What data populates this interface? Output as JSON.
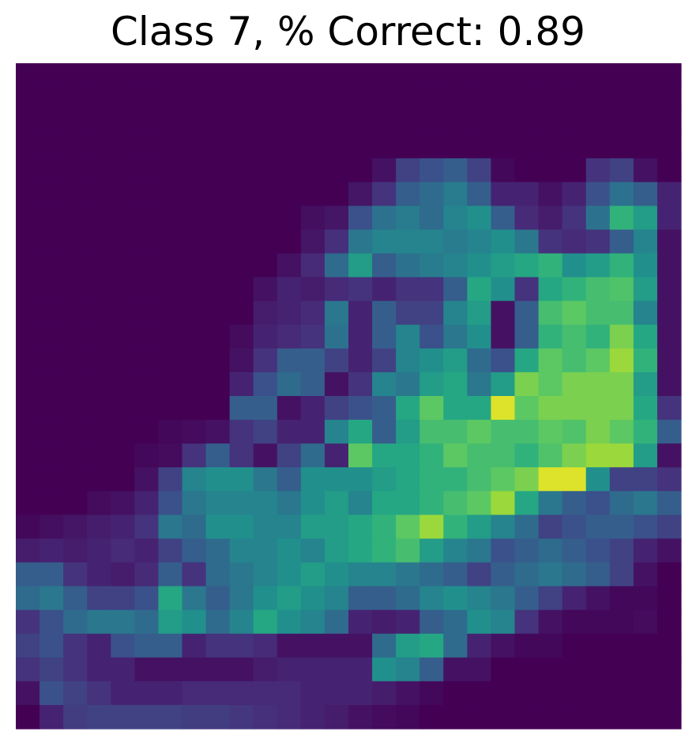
{
  "chart_data": {
    "type": "heatmap",
    "title": "Class 7, % Correct: 0.89",
    "xlabel": "",
    "ylabel": "",
    "axes_visible": false,
    "grid": false,
    "colormap": "viridis",
    "rows": 28,
    "cols": 28,
    "vmin": 0,
    "vmax": 1,
    "values": [
      [
        0,
        0,
        0,
        0,
        0,
        0,
        0,
        0,
        0,
        0,
        0,
        0,
        0,
        0,
        0,
        0,
        0,
        0,
        0,
        0,
        0,
        0,
        0,
        0,
        0,
        0,
        0,
        0
      ],
      [
        0,
        0,
        0,
        0,
        0,
        0,
        0,
        0,
        0,
        0,
        0,
        0,
        0,
        0,
        0,
        0,
        0,
        0,
        0,
        0,
        0,
        0,
        0,
        0,
        0,
        0,
        0,
        0
      ],
      [
        0,
        0,
        0,
        0,
        0,
        0,
        0,
        0,
        0,
        0,
        0,
        0,
        0,
        0,
        0,
        0,
        0,
        0,
        0,
        0,
        0,
        0,
        0,
        0,
        0,
        0,
        0,
        0
      ],
      [
        0,
        0,
        0,
        0,
        0,
        0,
        0,
        0,
        0,
        0,
        0,
        0,
        0,
        0,
        0,
        0,
        0,
        0,
        0,
        0,
        0,
        0,
        0,
        0,
        0,
        0,
        0,
        0
      ],
      [
        0,
        0,
        0,
        0,
        0,
        0,
        0,
        0,
        0,
        0,
        0,
        0,
        0,
        0,
        0,
        0.05,
        0.2,
        0.25,
        0.3,
        0.2,
        0.02,
        0,
        0,
        0,
        0.15,
        0.2,
        0.05,
        0
      ],
      [
        0,
        0,
        0,
        0,
        0,
        0,
        0,
        0,
        0,
        0,
        0,
        0,
        0,
        0,
        0.06,
        0.15,
        0.3,
        0.35,
        0.42,
        0.3,
        0.1,
        0.1,
        0.05,
        0.1,
        0.25,
        0.38,
        0.3,
        0.1
      ],
      [
        0,
        0,
        0,
        0,
        0,
        0,
        0,
        0,
        0,
        0,
        0,
        0,
        0.04,
        0.06,
        0.25,
        0.38,
        0.42,
        0.35,
        0.45,
        0.5,
        0.3,
        0.12,
        0.08,
        0.15,
        0.38,
        0.65,
        0.55,
        0.1
      ],
      [
        0,
        0,
        0,
        0,
        0,
        0,
        0,
        0,
        0,
        0,
        0,
        0,
        0.06,
        0.14,
        0.4,
        0.45,
        0.45,
        0.45,
        0.42,
        0.45,
        0.5,
        0.4,
        0.15,
        0.12,
        0.15,
        0.3,
        0.45,
        0.05
      ],
      [
        0,
        0,
        0,
        0,
        0,
        0,
        0,
        0,
        0,
        0,
        0,
        0.05,
        0.12,
        0.35,
        0.55,
        0.3,
        0.38,
        0.42,
        0.45,
        0.5,
        0.55,
        0.6,
        0.65,
        0.5,
        0.55,
        0.65,
        0.5,
        0.05
      ],
      [
        0,
        0,
        0,
        0,
        0,
        0,
        0,
        0,
        0,
        0,
        0.05,
        0.1,
        0.08,
        0.12,
        0.15,
        0.1,
        0.15,
        0.15,
        0.3,
        0.6,
        0.5,
        0.15,
        0.6,
        0.65,
        0.7,
        0.72,
        0.55,
        0.05
      ],
      [
        0,
        0,
        0,
        0,
        0,
        0,
        0,
        0,
        0,
        0,
        0.08,
        0.1,
        0.12,
        0.4,
        0.1,
        0.3,
        0.2,
        0.2,
        0.45,
        0.55,
        0.05,
        0.3,
        0.7,
        0.75,
        0.7,
        0.7,
        0.45,
        0.05
      ],
      [
        0,
        0,
        0,
        0,
        0,
        0,
        0,
        0,
        0,
        0.03,
        0.1,
        0.12,
        0.15,
        0.38,
        0.1,
        0.3,
        0.45,
        0.25,
        0.4,
        0.5,
        0.05,
        0.3,
        0.65,
        0.7,
        0.65,
        0.8,
        0.6,
        0.05
      ],
      [
        0,
        0,
        0,
        0,
        0,
        0,
        0,
        0,
        0,
        0.05,
        0.15,
        0.3,
        0.3,
        0.2,
        0.1,
        0.2,
        0.45,
        0.5,
        0.55,
        0.35,
        0.25,
        0.6,
        0.75,
        0.7,
        0.75,
        0.85,
        0.65,
        0.05
      ],
      [
        0,
        0,
        0,
        0,
        0,
        0,
        0,
        0,
        0,
        0.1,
        0.25,
        0.35,
        0.3,
        0.05,
        0.15,
        0.45,
        0.4,
        0.55,
        0.6,
        0.4,
        0.55,
        0.8,
        0.75,
        0.8,
        0.8,
        0.8,
        0.55,
        0.05
      ],
      [
        0,
        0,
        0,
        0,
        0,
        0,
        0,
        0,
        0,
        0.3,
        0.3,
        0.05,
        0.1,
        0.2,
        0.25,
        0.3,
        0.6,
        0.75,
        0.6,
        0.6,
        0.95,
        0.75,
        0.8,
        0.8,
        0.8,
        0.8,
        0.6,
        0.15
      ],
      [
        0,
        0,
        0,
        0,
        0,
        0,
        0.02,
        0.03,
        0.05,
        0.15,
        0.2,
        0.1,
        0.1,
        0.45,
        0.6,
        0.3,
        0.55,
        0.7,
        0.7,
        0.75,
        0.7,
        0.7,
        0.75,
        0.72,
        0.8,
        0.75,
        0.65,
        0.3
      ],
      [
        0,
        0,
        0,
        0,
        0,
        0.02,
        0.03,
        0.15,
        0.3,
        0.15,
        0.05,
        0.2,
        0.35,
        0.1,
        0.75,
        0.6,
        0.6,
        0.65,
        0.75,
        0.7,
        0.7,
        0.65,
        0.72,
        0.8,
        0.85,
        0.85,
        0.55,
        0.05
      ],
      [
        0,
        0,
        0,
        0,
        0,
        0.05,
        0.2,
        0.45,
        0.5,
        0.5,
        0.4,
        0.3,
        0.5,
        0.5,
        0.5,
        0.55,
        0.6,
        0.65,
        0.65,
        0.7,
        0.75,
        0.8,
        0.95,
        0.95,
        0.5,
        0.2,
        0.2,
        0.15
      ],
      [
        0,
        0,
        0,
        0.03,
        0.05,
        0.1,
        0.25,
        0.4,
        0.45,
        0.45,
        0.45,
        0.4,
        0.5,
        0.55,
        0.45,
        0.6,
        0.6,
        0.65,
        0.7,
        0.75,
        0.85,
        0.6,
        0.4,
        0.3,
        0.25,
        0.35,
        0.4,
        0.3
      ],
      [
        0.02,
        0.04,
        0.06,
        0.08,
        0.1,
        0.15,
        0.4,
        0.35,
        0.5,
        0.5,
        0.45,
        0.45,
        0.55,
        0.55,
        0.6,
        0.65,
        0.75,
        0.85,
        0.65,
        0.55,
        0.45,
        0.35,
        0.2,
        0.25,
        0.3,
        0.3,
        0.25,
        0.2
      ],
      [
        0.08,
        0.1,
        0.08,
        0.1,
        0.12,
        0.1,
        0.2,
        0.3,
        0.35,
        0.45,
        0.45,
        0.5,
        0.45,
        0.55,
        0.6,
        0.65,
        0.7,
        0.55,
        0.45,
        0.4,
        0.25,
        0.3,
        0.35,
        0.3,
        0.25,
        0.2,
        0.1,
        0.05
      ],
      [
        0.3,
        0.3,
        0.15,
        0.1,
        0.08,
        0.12,
        0.3,
        0.15,
        0.35,
        0.4,
        0.45,
        0.5,
        0.55,
        0.5,
        0.45,
        0.45,
        0.4,
        0.35,
        0.3,
        0.2,
        0.3,
        0.35,
        0.4,
        0.35,
        0.3,
        0.2,
        0.05,
        0
      ],
      [
        0.35,
        0.4,
        0.3,
        0.2,
        0.2,
        0.25,
        0.6,
        0.4,
        0.3,
        0.4,
        0.5,
        0.55,
        0.5,
        0.45,
        0.3,
        0.3,
        0.35,
        0.45,
        0.5,
        0.45,
        0.4,
        0.3,
        0.2,
        0.1,
        0.05,
        0.02,
        0.02,
        0
      ],
      [
        0.15,
        0.25,
        0.35,
        0.4,
        0.4,
        0.35,
        0.55,
        0.5,
        0.35,
        0.45,
        0.6,
        0.5,
        0.45,
        0.35,
        0.1,
        0.08,
        0.1,
        0.3,
        0.35,
        0.5,
        0.45,
        0.15,
        0.05,
        0.02,
        0.02,
        0.02,
        0.03,
        0
      ],
      [
        0.2,
        0.25,
        0.15,
        0.1,
        0.25,
        0.3,
        0.3,
        0.1,
        0.15,
        0.15,
        0.12,
        0.05,
        0.05,
        0.05,
        0.05,
        0.35,
        0.55,
        0.6,
        0.35,
        0.1,
        0.05,
        0.02,
        0.02,
        0,
        0,
        0,
        0,
        0
      ],
      [
        0.15,
        0.2,
        0.15,
        0.1,
        0.1,
        0.05,
        0.05,
        0.05,
        0.05,
        0.05,
        0.08,
        0.1,
        0.1,
        0.1,
        0.1,
        0.5,
        0.45,
        0.3,
        0.05,
        0.05,
        0,
        0,
        0,
        0,
        0,
        0,
        0,
        0
      ],
      [
        0.05,
        0.25,
        0.2,
        0.15,
        0.1,
        0.1,
        0.1,
        0.12,
        0.12,
        0.12,
        0.12,
        0.12,
        0.1,
        0.1,
        0.1,
        0.08,
        0.05,
        0.02,
        0,
        0,
        0,
        0,
        0,
        0,
        0,
        0,
        0,
        0
      ],
      [
        0,
        0.1,
        0.18,
        0.2,
        0.2,
        0.2,
        0.2,
        0.18,
        0.18,
        0.16,
        0.14,
        0.12,
        0.1,
        0.08,
        0.05,
        0.03,
        0.02,
        0,
        0,
        0,
        0,
        0,
        0,
        0,
        0,
        0,
        0,
        0
      ]
    ]
  }
}
